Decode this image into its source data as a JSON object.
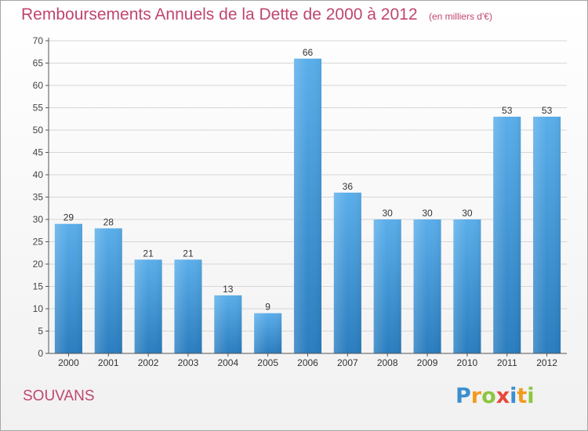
{
  "title": {
    "main": "Remboursements Annuels de la Dette de 2000 à 2012",
    "unit": "(en milliers d'€)"
  },
  "commune": "SOUVANS",
  "logo": {
    "text": "Proxiti",
    "letters": [
      {
        "char": "P",
        "color": "#3b8fcf"
      },
      {
        "char": "r",
        "color": "#f39a1e"
      },
      {
        "char": "o",
        "color": "#8cc63f"
      },
      {
        "char": "x",
        "color": "#e8473a"
      },
      {
        "char": "i",
        "color": "#3b8fcf"
      },
      {
        "char": "t",
        "color": "#f39a1e"
      },
      {
        "char": "i",
        "color": "#8cc63f"
      }
    ]
  },
  "colors": {
    "title": "#c0466f",
    "bar_top": "#5aaeea",
    "bar_bottom": "#2a7dbf",
    "grid": "#d6d6d6",
    "axis": "#555555"
  },
  "chart_data": {
    "type": "bar",
    "categories": [
      "2000",
      "2001",
      "2002",
      "2003",
      "2004",
      "2005",
      "2006",
      "2007",
      "2008",
      "2009",
      "2010",
      "2011",
      "2012"
    ],
    "values": [
      29,
      28,
      21,
      21,
      13,
      9,
      66,
      36,
      30,
      30,
      30,
      53,
      53
    ],
    "ylim": [
      0,
      70
    ],
    "yticks": [
      0,
      5,
      10,
      15,
      20,
      25,
      30,
      35,
      40,
      45,
      50,
      55,
      60,
      65,
      70
    ],
    "grid": true,
    "data_labels": true
  }
}
